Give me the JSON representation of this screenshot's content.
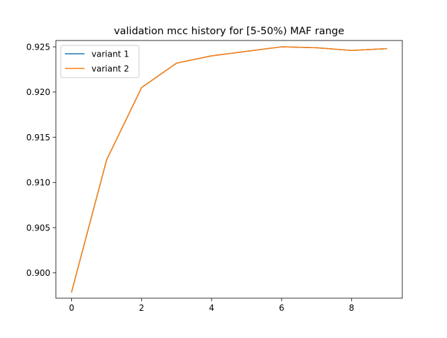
{
  "chart_data": {
    "type": "line",
    "title": "validation mcc history for [5-50%) MAF range",
    "xlabel": "",
    "ylabel": "",
    "xlim": [
      -0.45,
      9.45
    ],
    "ylim": [
      0.8972,
      0.9257
    ],
    "x_ticks": [
      0,
      2,
      4,
      6,
      8
    ],
    "x_tick_labels": [
      "0",
      "2",
      "4",
      "6",
      "8"
    ],
    "y_ticks": [
      0.9,
      0.905,
      0.91,
      0.915,
      0.92,
      0.925
    ],
    "y_tick_labels": [
      "0.900",
      "0.905",
      "0.910",
      "0.915",
      "0.920",
      "0.925"
    ],
    "grid": false,
    "legend_position": "top-left",
    "x": [
      0,
      1,
      2,
      3,
      4,
      5,
      6,
      7,
      8,
      9
    ],
    "series": [
      {
        "name": "variant 1",
        "color": "#1f77b4",
        "values": [
          0.8979,
          0.9125,
          0.9205,
          0.9232,
          0.924,
          0.9245,
          0.925,
          0.9249,
          0.9246,
          0.9248
        ]
      },
      {
        "name": "variant 2",
        "color": "#ff7f0e",
        "values": [
          0.8979,
          0.9125,
          0.9205,
          0.9232,
          0.924,
          0.9245,
          0.925,
          0.9249,
          0.9246,
          0.9248
        ]
      }
    ]
  }
}
